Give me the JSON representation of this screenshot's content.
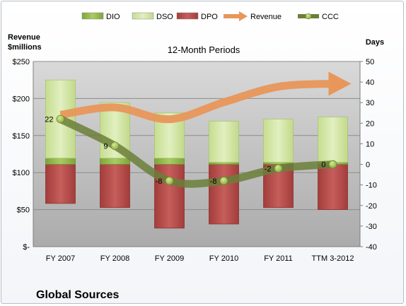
{
  "company": "Global Sources",
  "chart_data": {
    "type": "bar",
    "title": "12-Month Periods",
    "ylabel_left": "Revenue $millions",
    "ylabel_right": "Days",
    "categories": [
      "FY 2007",
      "FY 2008",
      "FY 2009",
      "FY 2010",
      "FY 2011",
      "TTM 3-2012"
    ],
    "left_axis": {
      "ylim": [
        0,
        250
      ],
      "ticks": [
        "$-",
        "$50",
        "$100",
        "$150",
        "$200",
        "$250"
      ]
    },
    "right_axis": {
      "ylim": [
        -40,
        50
      ],
      "ticks": [
        "-40",
        "-30",
        "-20",
        "-10",
        "0",
        "10",
        "20",
        "30",
        "40",
        "50"
      ]
    },
    "legend": {
      "placement": "top",
      "entries": [
        "DIO",
        "DSO",
        "DPO",
        "Revenue",
        "CCC"
      ]
    },
    "series": [
      {
        "name": "DIO",
        "axis": "right",
        "values": [
          3,
          3,
          3,
          1,
          1,
          1
        ],
        "color": "#8fb64a"
      },
      {
        "name": "DSO",
        "axis": "right",
        "values": [
          38,
          27,
          22,
          20,
          21,
          22
        ],
        "color": "#d3e6a4"
      },
      {
        "name": "DPO",
        "axis": "right",
        "values": [
          -19,
          -21,
          -31,
          -29,
          -21,
          -22
        ],
        "color": "#b84a48"
      },
      {
        "name": "Revenue",
        "axis": "left",
        "values": [
          178,
          188,
          172,
          195,
          216,
          220
        ],
        "color": "#e8965a"
      },
      {
        "name": "CCC",
        "axis": "right",
        "values": [
          22,
          9,
          -8,
          -8,
          -2,
          0
        ],
        "labels": [
          "22",
          "9",
          "-8",
          "-8",
          "-2",
          "0"
        ],
        "color": "#6b7f3a"
      }
    ]
  }
}
